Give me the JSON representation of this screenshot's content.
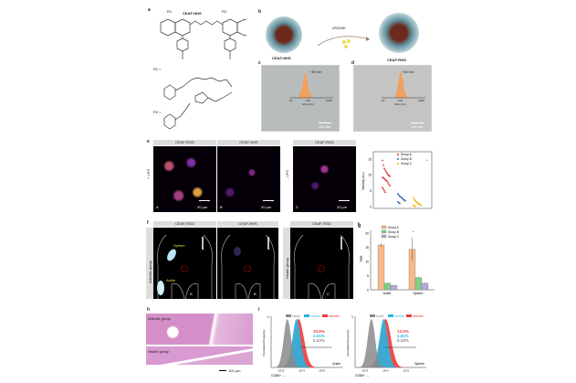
{
  "panels": {
    "a": {
      "label": "a",
      "title": "CEAF-NHS",
      "r1": "R1",
      "r2": "R2",
      "r1_eq": "R1 =",
      "r2_eq": "R2 ="
    },
    "b": {
      "label": "b",
      "reagent": "cRGDfK",
      "left": "CEAF-NHS",
      "right": "CEAF-RGD"
    },
    "c": {
      "label": "c",
      "size": "~45 nm",
      "scale": "100 nm",
      "xlabel": "Size (nm)",
      "ticks": [
        "10",
        "100",
        "1000"
      ]
    },
    "d": {
      "label": "d",
      "size": "~64 nm",
      "scale": "100 nm",
      "xlabel": "Size (nm)",
      "ticks": [
        "10",
        "100",
        "1000"
      ]
    },
    "e": {
      "label": "e",
      "headers": [
        "CEAF-RGD",
        "CEAF-NHS",
        "CEAF-RGD"
      ],
      "row_plus": "+ LPS",
      "row_minus": "- LPS",
      "letters": [
        "A",
        "B",
        "C"
      ],
      "scale": "20 µm"
    },
    "f": {
      "label": "f",
      "headers": [
        "CEAF-RGD",
        "CEAF-NHS",
        "CEAF-RGD"
      ],
      "row1": "Arthritis group",
      "row2": "Health group",
      "spleen": "Spleen",
      "ankle": "Ankle",
      "letters": [
        "A",
        "B",
        "C"
      ]
    },
    "h": {
      "label": "h",
      "arthritis": "Arthritis group",
      "health": "Health group",
      "scale": "100 µm"
    },
    "i": {
      "label": "i",
      "legend": [
        "blank",
        "normal",
        "arthritis"
      ],
      "ylabel": "Normalized frequency",
      "xlabel": "CD86+ →",
      "plots": [
        {
          "site": "Ankle",
          "pcts": [
            "10.9%",
            "2.01%",
            "0.43%"
          ]
        },
        {
          "site": "Spleen",
          "pcts": [
            "13.0%",
            "2.61%",
            "0.43%"
          ]
        }
      ]
    }
  },
  "colors": {
    "groupA": "#f7b98a",
    "groupB": "#7fd08a",
    "groupC": "#b8a6dc",
    "blank": "#8a8a8a",
    "normal": "#2ab4e0",
    "arthritis": "#ee3b3b",
    "scatterA": "#e0302c",
    "scatterB": "#2f6db5",
    "scatterC": "#f0b400"
  },
  "chart_data": [
    {
      "panel": "e",
      "type": "scatter",
      "ylabel": "Intensity (a.u.)",
      "ylim": [
        0,
        15
      ],
      "yticks": [
        "0",
        "5",
        "10",
        "15"
      ],
      "legend": [
        "Group A",
        "Group B",
        "Group C"
      ],
      "significance": "*",
      "series": [
        {
          "name": "Group A",
          "values": [
            14.5,
            13,
            12,
            11.5,
            11,
            10.5,
            10,
            9.8,
            9.5,
            9.2,
            9,
            8.8,
            8.5,
            8.2,
            8,
            7.5,
            7,
            6.5,
            6,
            5.5,
            5,
            4.5
          ]
        },
        {
          "name": "Group B",
          "values": [
            4,
            3.6,
            3.2,
            3,
            2.8,
            2.5,
            2.2,
            2,
            1.8,
            1.5,
            1.2,
            1
          ]
        },
        {
          "name": "Group C",
          "values": [
            2.8,
            2.2,
            1.8,
            1.5,
            1.2,
            1,
            0.8,
            0.6,
            0.4,
            0.3,
            0.2,
            0.1
          ]
        }
      ]
    },
    {
      "panel": "g",
      "type": "bar",
      "ylabel": "TBR",
      "ylim": [
        0,
        20
      ],
      "yticks": [
        "0",
        "5",
        "10",
        "15",
        "20"
      ],
      "categories": [
        "Ankle",
        "Spleen"
      ],
      "legend": [
        "Group A",
        "Group B",
        "Group C"
      ],
      "significance": "*",
      "series": [
        {
          "name": "Group A",
          "values": [
            15.8,
            14.3
          ],
          "errors": [
            0.7,
            4
          ]
        },
        {
          "name": "Group B",
          "values": [
            2.3,
            4.3
          ],
          "errors": [
            0.1,
            0.3
          ]
        },
        {
          "name": "Group C",
          "values": [
            1.5,
            2.3
          ],
          "errors": [
            0.1,
            0.1
          ]
        }
      ]
    },
    {
      "panel": "i",
      "type": "area",
      "xlabel": "CD86+",
      "ylabel": "Normalized frequency",
      "xscale": "log",
      "xticks": [
        "10^3",
        "10^4",
        "10^5"
      ],
      "ylim": [
        0,
        1
      ],
      "peaks_log10": {
        "blank": 3.3,
        "normal": 3.75,
        "arthritis": 3.85
      }
    }
  ]
}
